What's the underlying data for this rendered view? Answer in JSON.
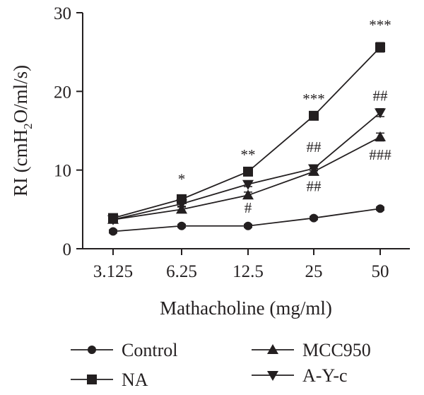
{
  "chart_data": {
    "type": "line",
    "xlabel": "Mathacholine (mg/ml)",
    "ylabel_main": "RI (cmH",
    "ylabel_sub": "2",
    "ylabel_tail": "O/ml/s)",
    "categories": [
      "3.125",
      "6.25",
      "12.5",
      "25",
      "50"
    ],
    "ylim": [
      0,
      30
    ],
    "yticks": [
      "0",
      "10",
      "20",
      "30"
    ],
    "grid": false,
    "legend_placement": "bottom",
    "series": [
      {
        "name": "Control",
        "marker": "circle",
        "values": [
          2.2,
          2.9,
          2.9,
          3.9,
          5.1
        ],
        "errors": [
          0.2,
          0.2,
          0.2,
          0.2,
          0.2
        ]
      },
      {
        "name": "NA",
        "marker": "square",
        "values": [
          3.9,
          6.3,
          9.8,
          16.9,
          25.6
        ],
        "errors": [
          0.3,
          0.3,
          0.3,
          0.3,
          0.6
        ]
      },
      {
        "name": "MCC950",
        "marker": "triangle-up",
        "values": [
          3.7,
          5.0,
          6.8,
          9.8,
          14.2
        ],
        "errors": [
          0.3,
          0.3,
          0.4,
          0.4,
          0.5
        ]
      },
      {
        "name": "A-Y-c",
        "marker": "triangle-down",
        "values": [
          3.7,
          5.7,
          8.2,
          10.2,
          17.3
        ],
        "errors": [
          0.3,
          0.3,
          0.3,
          0.3,
          0.5
        ]
      }
    ],
    "annotations": [
      {
        "category": "6.25",
        "y": 8.2,
        "text": "*"
      },
      {
        "category": "12.5",
        "y": 11.3,
        "text": "**"
      },
      {
        "category": "12.5",
        "y": 4.6,
        "text": "#"
      },
      {
        "category": "25",
        "y": 18.4,
        "text": "***"
      },
      {
        "category": "25",
        "y": 12.3,
        "text": "##"
      },
      {
        "category": "25",
        "y": 7.3,
        "text": "##"
      },
      {
        "category": "50",
        "y": 27.8,
        "text": "***"
      },
      {
        "category": "50",
        "y": 18.8,
        "text": "##"
      },
      {
        "category": "50",
        "y": 11.3,
        "text": "###"
      }
    ]
  },
  "colors": {
    "ink": "#231f20",
    "background": "#ffffff"
  }
}
